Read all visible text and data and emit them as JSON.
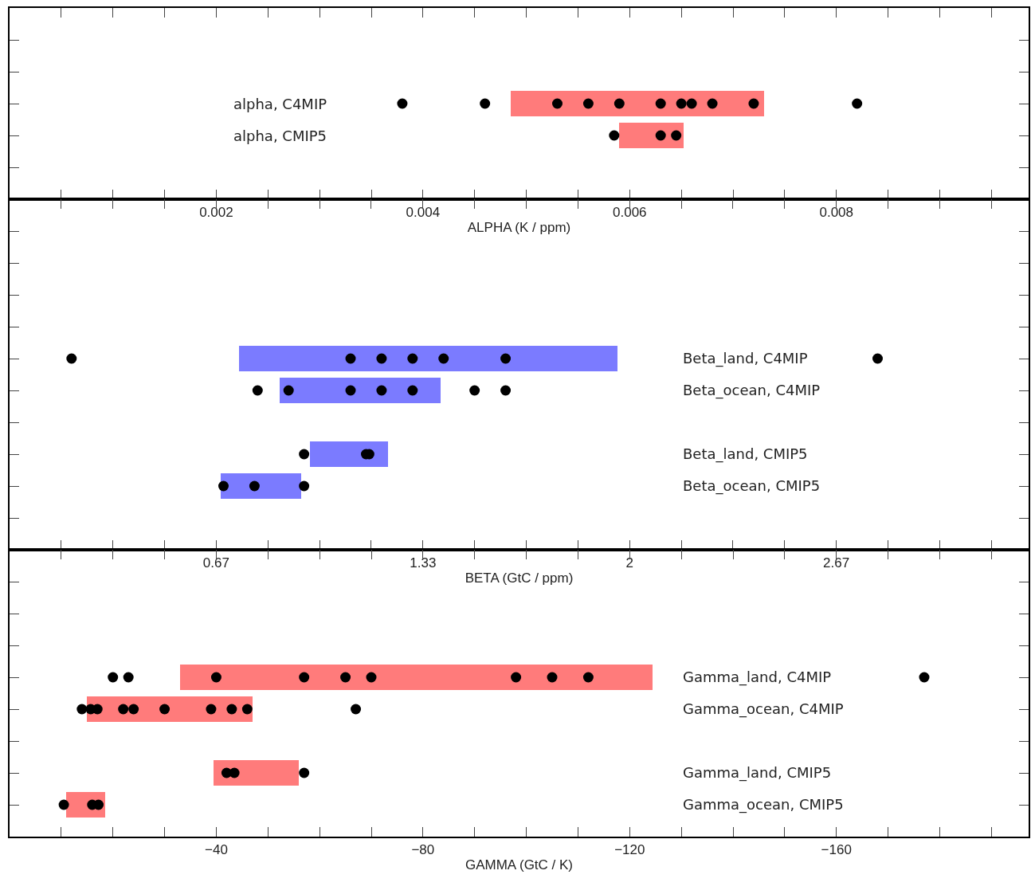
{
  "chart_data": [
    {
      "type": "bar",
      "orientation": "horizontal",
      "xlabel": "ALPHA (K / ppm)",
      "tick_labels": "x",
      "grid": false,
      "marker": "circle",
      "categories": [
        null,
        null,
        "alpha, C4MIP",
        "alpha, CMIP5",
        null
      ],
      "xlim": [
        0,
        0.00986
      ],
      "xticks": [
        {
          "value": 0.0005,
          "label": null
        },
        {
          "value": 0.001,
          "label": null
        },
        {
          "value": 0.0015,
          "label": null
        },
        0.002,
        {
          "value": 0.0025,
          "label": null
        },
        {
          "value": 0.003,
          "label": null
        },
        {
          "value": 0.0035,
          "label": null
        },
        0.004,
        {
          "value": 0.0045,
          "label": null
        },
        {
          "value": 0.005,
          "label": null
        },
        {
          "value": 0.0055,
          "label": null
        },
        0.006,
        {
          "value": 0.0065,
          "label": null
        },
        {
          "value": 0.007,
          "label": null
        },
        {
          "value": 0.0075,
          "label": null
        },
        0.008,
        {
          "value": 0.0085,
          "label": null
        },
        {
          "value": 0.009,
          "label": null
        },
        {
          "value": 0.0095,
          "label": null
        }
      ],
      "series": [
        {
          "color": "#ff7b7b",
          "base": [
            null,
            null,
            0.00485,
            0.0059,
            null
          ],
          "values": [
            null,
            null,
            0.00245,
            0.00062,
            null
          ]
        },
        {
          "type": "scatter",
          "color": "#000000",
          "x": [
            "alpha, C4MIP",
            "alpha, C4MIP",
            "alpha, C4MIP",
            "alpha, C4MIP",
            "alpha, C4MIP",
            "alpha, C4MIP",
            "alpha, C4MIP",
            "alpha, C4MIP",
            "alpha, C4MIP",
            "alpha, C4MIP",
            "alpha, C4MIP",
            "alpha, CMIP5",
            "alpha, CMIP5",
            "alpha, CMIP5"
          ],
          "values": [
            0.0038,
            0.0046,
            0.0053,
            0.0056,
            0.0059,
            0.0063,
            0.0065,
            0.0066,
            0.0068,
            0.0072,
            0.0082,
            0.00585,
            0.0063,
            0.00645
          ]
        }
      ]
    },
    {
      "type": "bar",
      "orientation": "horizontal",
      "xlabel": "BETA (GtC / ppm)",
      "tick_labels": "x",
      "grid": false,
      "marker": "circle",
      "categories": [
        null,
        null,
        null,
        null,
        "Beta_land, C4MIP",
        "Beta_ocean, C4MIP",
        null,
        "Beta_land, CMIP5",
        "Beta_ocean, CMIP5",
        null
      ],
      "xlim": [
        0,
        3.287
      ],
      "xticks": [
        {
          "value": 0.1667,
          "label": null
        },
        {
          "value": 0.3333,
          "label": null
        },
        {
          "value": 0.5,
          "label": null
        },
        {
          "value": 0.6667,
          "label": "0.67"
        },
        {
          "value": 0.8333,
          "label": null
        },
        {
          "value": 1,
          "label": null
        },
        {
          "value": 1.1667,
          "label": null
        },
        {
          "value": 1.3333,
          "label": "1.33"
        },
        {
          "value": 1.5,
          "label": null
        },
        {
          "value": 1.6667,
          "label": null
        },
        {
          "value": 1.8333,
          "label": null
        },
        2,
        {
          "value": 2.1667,
          "label": null
        },
        {
          "value": 2.3333,
          "label": null
        },
        {
          "value": 2.5,
          "label": null
        },
        {
          "value": 2.6667,
          "label": "2.67"
        },
        {
          "value": 2.8333,
          "label": null
        },
        {
          "value": 3,
          "label": null
        },
        {
          "value": 3.1667,
          "label": null
        }
      ],
      "series": [
        {
          "color": "#7b7bff",
          "base": [
            null,
            null,
            null,
            null,
            0.74,
            0.87,
            null,
            0.97,
            0.68,
            null
          ],
          "values": [
            null,
            null,
            null,
            null,
            1.22,
            0.52,
            null,
            0.25,
            0.26,
            null
          ]
        },
        {
          "type": "scatter",
          "color": "#000000",
          "x": [
            "Beta_land, C4MIP",
            "Beta_land, C4MIP",
            "Beta_land, C4MIP",
            "Beta_land, C4MIP",
            "Beta_land, C4MIP",
            "Beta_land, C4MIP",
            "Beta_land, C4MIP",
            "Beta_ocean, C4MIP",
            "Beta_ocean, C4MIP",
            "Beta_ocean, C4MIP",
            "Beta_ocean, C4MIP",
            "Beta_ocean, C4MIP",
            "Beta_ocean, C4MIP",
            "Beta_ocean, C4MIP",
            "Beta_land, CMIP5",
            "Beta_land, CMIP5",
            "Beta_land, CMIP5",
            "Beta_ocean, CMIP5",
            "Beta_ocean, CMIP5",
            "Beta_ocean, CMIP5"
          ],
          "values": [
            0.2,
            1.1,
            1.2,
            1.3,
            1.4,
            1.6,
            2.8,
            0.8,
            0.9,
            1.1,
            1.2,
            1.3,
            1.5,
            1.6,
            0.95,
            1.15,
            1.16,
            0.69,
            0.79,
            0.95
          ]
        }
      ]
    },
    {
      "type": "bar",
      "orientation": "horizontal",
      "xlabel": "GAMMA (GtC / K)",
      "tick_labels": "x",
      "grid": false,
      "marker": "circle",
      "categories": [
        null,
        null,
        null,
        "Gamma_land, C4MIP",
        "Gamma_ocean, C4MIP",
        null,
        "Gamma_land, CMIP5",
        "Gamma_ocean, CMIP5"
      ],
      "xlim": [
        0,
        -197.2
      ],
      "xticks": [
        {
          "value": -10,
          "label": null
        },
        {
          "value": -20,
          "label": null
        },
        {
          "value": -30,
          "label": null
        },
        {
          "value": -40,
          "label": "−40"
        },
        {
          "value": -50,
          "label": null
        },
        {
          "value": -60,
          "label": null
        },
        {
          "value": -70,
          "label": null
        },
        {
          "value": -80,
          "label": "−80"
        },
        {
          "value": -90,
          "label": null
        },
        {
          "value": -100,
          "label": null
        },
        {
          "value": -110,
          "label": null
        },
        {
          "value": -120,
          "label": "−120"
        },
        {
          "value": -130,
          "label": null
        },
        {
          "value": -140,
          "label": null
        },
        {
          "value": -150,
          "label": null
        },
        {
          "value": -160,
          "label": "−160"
        },
        {
          "value": -170,
          "label": null
        },
        {
          "value": -180,
          "label": null
        },
        {
          "value": -190,
          "label": null
        }
      ],
      "series": [
        {
          "color": "#ff7b7b",
          "base": [
            null,
            null,
            null,
            -33,
            -15,
            null,
            -39.5,
            -11
          ],
          "values": [
            null,
            null,
            null,
            -91.5,
            -32,
            null,
            -16.5,
            -7.5
          ]
        },
        {
          "type": "scatter",
          "color": "#000000",
          "x": [
            "Gamma_land, C4MIP",
            "Gamma_land, C4MIP",
            "Gamma_land, C4MIP",
            "Gamma_land, C4MIP",
            "Gamma_land, C4MIP",
            "Gamma_land, C4MIP",
            "Gamma_land, C4MIP",
            "Gamma_land, C4MIP",
            "Gamma_land, C4MIP",
            "Gamma_land, C4MIP",
            "Gamma_ocean, C4MIP",
            "Gamma_ocean, C4MIP",
            "Gamma_ocean, C4MIP",
            "Gamma_ocean, C4MIP",
            "Gamma_ocean, C4MIP",
            "Gamma_ocean, C4MIP",
            "Gamma_ocean, C4MIP",
            "Gamma_ocean, C4MIP",
            "Gamma_ocean, C4MIP",
            "Gamma_ocean, C4MIP",
            "Gamma_land, CMIP5",
            "Gamma_land, CMIP5",
            "Gamma_land, CMIP5",
            "Gamma_ocean, CMIP5",
            "Gamma_ocean, CMIP5",
            "Gamma_ocean, CMIP5"
          ],
          "values": [
            -20,
            -23,
            -40,
            -57,
            -65,
            -70,
            -98,
            -105,
            -112,
            -177,
            -14,
            -15.7,
            -17,
            -22,
            -24,
            -30,
            -39,
            -43,
            -46,
            -67,
            -42,
            -43.5,
            -57,
            -10.5,
            -16,
            -17.2
          ]
        }
      ]
    }
  ]
}
